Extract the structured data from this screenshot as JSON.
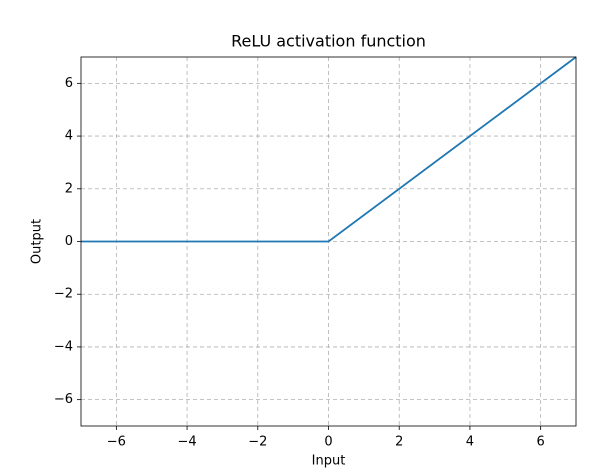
{
  "chart_data": {
    "type": "line",
    "title": "ReLU activation function",
    "x_label": "Input",
    "y_label": "Output",
    "x": [
      -7,
      0,
      7
    ],
    "series": [
      {
        "name": "ReLU",
        "color": "#1f77b4",
        "values": [
          0,
          0,
          7
        ]
      }
    ],
    "xlim": [
      -7,
      7
    ],
    "ylim": [
      -7,
      7
    ],
    "xticks": [
      {
        "value": -6,
        "label": "−6"
      },
      {
        "value": -4,
        "label": "−4"
      },
      {
        "value": -2,
        "label": "−2"
      },
      0,
      2,
      4,
      6
    ],
    "yticks": [
      {
        "value": -6,
        "label": "−6"
      },
      {
        "value": -4,
        "label": "−4"
      },
      {
        "value": -2,
        "label": "−2"
      },
      0,
      2,
      4,
      6
    ],
    "grid": true
  }
}
